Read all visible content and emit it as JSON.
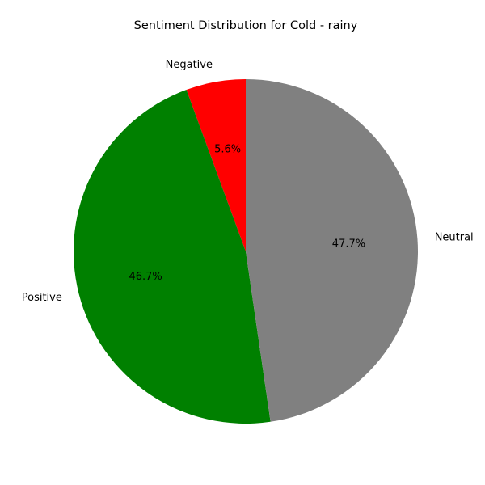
{
  "chart_data": {
    "type": "pie",
    "title": "Sentiment Distribution for Cold - rainy",
    "start_angle_deg": 90,
    "direction": "counterclockwise",
    "slices": [
      {
        "label": "Negative",
        "value": 5.6,
        "pct_label": "5.6%",
        "color": "#ff0000"
      },
      {
        "label": "Positive",
        "value": 46.7,
        "pct_label": "46.7%",
        "color": "#008000"
      },
      {
        "label": "Neutral",
        "value": 47.7,
        "pct_label": "47.7%",
        "color": "#808080"
      }
    ]
  }
}
